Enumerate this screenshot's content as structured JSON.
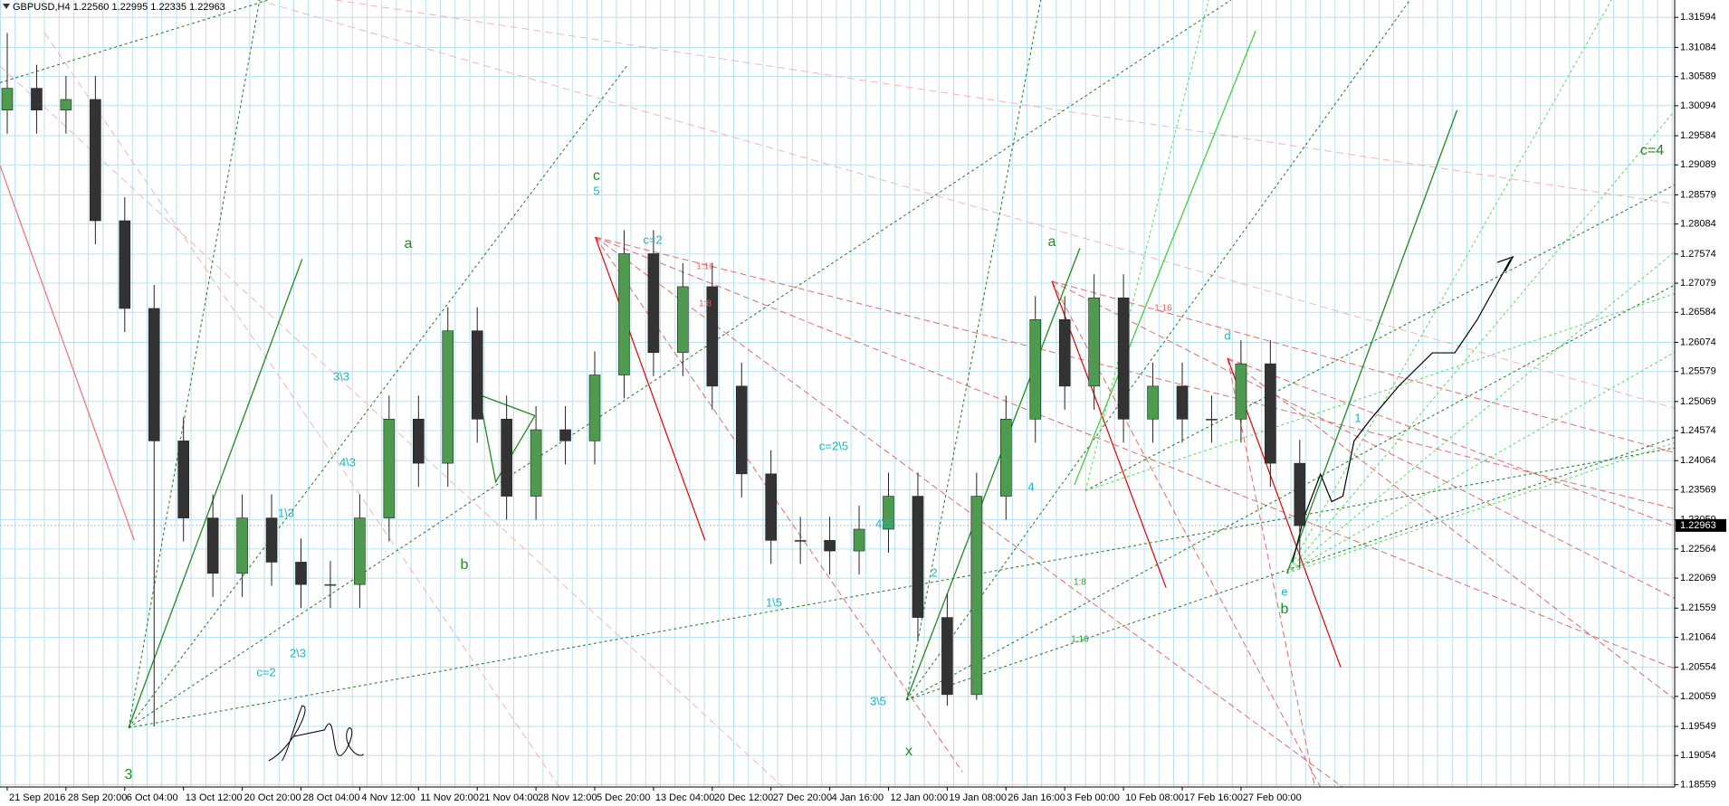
{
  "chart_data": {
    "type": "candlestick",
    "title": "GBPUSD,H4  1.22560 1.22995 1.22335 1.22963",
    "current_price": 1.22963,
    "categories": [
      "21 Sep 2016",
      null,
      "28 Sep 20:00",
      null,
      "6 Oct 04:00",
      null,
      "13 Oct 12:00",
      null,
      "20 Oct 20:00",
      null,
      "28 Oct 04:00",
      null,
      "4 Nov 12:00",
      null,
      "11 Nov 20:00",
      null,
      "21 Nov 04:00",
      null,
      "28 Nov 12:00",
      null,
      "5 Dec 20:00",
      null,
      "13 Dec 04:00",
      null,
      "20 Dec 12:00",
      null,
      "27 Dec 20:00",
      null,
      "4 Jan 16:00",
      null,
      "12 Jan 00:00",
      null,
      "19 Jan 08:00",
      null,
      "26 Jan 16:00",
      null,
      "3 Feb 00:00",
      null,
      "10 Feb 08:00",
      null,
      "17 Feb 16:00",
      null,
      "27 Feb 00:00",
      null,
      null
    ],
    "open": [
      1.3002,
      1.3039,
      1.3002,
      1.302,
      1.2814,
      1.2665,
      1.244,
      1.2309,
      1.2215,
      1.2309,
      1.2234,
      1.2196,
      1.2196,
      1.2309,
      1.2477,
      1.2402,
      1.2627,
      1.2477,
      1.2346,
      1.2459,
      1.244,
      1.2552,
      1.2758,
      1.259,
      1.2702,
      1.2533,
      1.2384,
      1.2271,
      1.2271,
      1.2253,
      1.229,
      1.2346,
      1.214,
      1.2009,
      1.2346,
      1.2477,
      1.2646,
      1.2533,
      1.2683,
      1.2477,
      1.2533,
      1.2477,
      1.2477,
      1.2571,
      1.2402
    ],
    "high": [
      1.3133,
      1.3079,
      1.306,
      1.306,
      1.2854,
      1.2705,
      1.248,
      1.2349,
      1.2349,
      1.2349,
      1.2274,
      1.2236,
      1.2349,
      1.2517,
      1.2517,
      1.2667,
      1.2667,
      1.2517,
      1.2499,
      1.2499,
      1.2592,
      1.2798,
      1.2798,
      1.2742,
      1.2742,
      1.2573,
      1.2424,
      1.2311,
      1.2311,
      1.233,
      1.2386,
      1.2386,
      1.218,
      1.2386,
      1.2517,
      1.2686,
      1.2686,
      1.2723,
      1.2723,
      1.2573,
      1.2573,
      1.2517,
      1.2611,
      1.2611,
      1.2442
    ],
    "low": [
      1.2962,
      1.2962,
      1.2962,
      1.2774,
      1.2625,
      1.1955,
      1.2269,
      1.2175,
      1.2175,
      1.2194,
      1.2156,
      1.2156,
      1.2156,
      1.2269,
      1.2362,
      1.2362,
      1.2437,
      1.2306,
      1.2306,
      1.24,
      1.24,
      1.2512,
      1.255,
      1.255,
      1.2493,
      1.2344,
      1.2231,
      1.2231,
      1.2213,
      1.2213,
      1.225,
      1.21,
      1.199,
      1.2,
      1.2306,
      1.2437,
      1.2493,
      1.2493,
      1.2437,
      1.2437,
      1.2437,
      1.2437,
      1.2437,
      1.2362,
      1.2223
    ],
    "close": [
      1.3039,
      1.3002,
      1.302,
      1.2814,
      1.2665,
      1.244,
      1.2309,
      1.2215,
      1.2309,
      1.2234,
      1.2196,
      1.2196,
      1.2309,
      1.2477,
      1.2402,
      1.2627,
      1.2477,
      1.2346,
      1.2459,
      1.244,
      1.2552,
      1.2758,
      1.259,
      1.2702,
      1.2533,
      1.2384,
      1.2271,
      1.2271,
      1.2253,
      1.229,
      1.2346,
      1.214,
      1.2009,
      1.2346,
      1.2477,
      1.2646,
      1.2533,
      1.2683,
      1.2477,
      1.2533,
      1.2477,
      1.2477,
      1.2571,
      1.2402,
      1.2296
    ],
    "up_color": "#4e9a4e",
    "down_color": "#333333",
    "ylim": [
      1.1852,
      1.3189
    ],
    "yticks": [
      1.31594,
      1.31084,
      1.30589,
      1.30094,
      1.29584,
      1.29089,
      1.28579,
      1.28084,
      1.27574,
      1.27079,
      1.26584,
      1.26074,
      1.25579,
      1.25069,
      1.24574,
      1.24064,
      1.23569,
      1.23059,
      1.22564,
      1.22069,
      1.21559,
      1.21064,
      1.20554,
      1.20059,
      1.19549,
      1.19054,
      1.18559
    ],
    "grid": true,
    "annotations": [
      "c",
      "5",
      "a",
      "b",
      "3",
      "x",
      "a",
      "b",
      "c=4",
      "c=2",
      "c=2\\5",
      "1:16",
      "1:8",
      "1:16",
      "1:16",
      "1:8",
      "3\\5",
      "4\\5",
      "1\\5",
      "2\\3",
      "c=2",
      "1\\3",
      "3\\3",
      "4\\3",
      "d",
      "e",
      "1",
      "4",
      "2"
    ]
  }
}
